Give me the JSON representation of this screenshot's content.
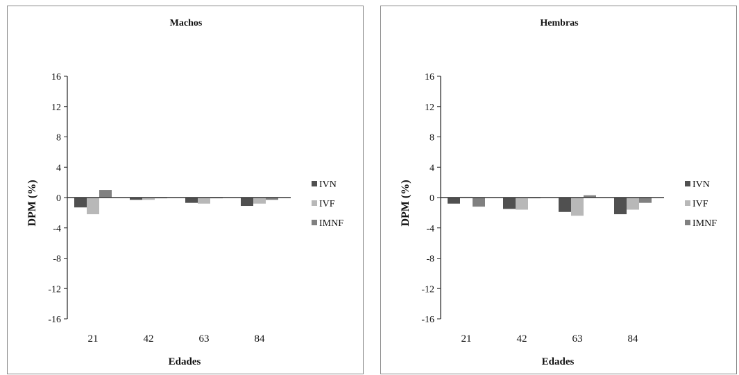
{
  "chart_data": [
    {
      "type": "bar",
      "title": "Machos",
      "xlabel": "Edades",
      "ylabel": "DPM  (%)",
      "categories": [
        "21",
        "42",
        "63",
        "84"
      ],
      "ylim": [
        -16,
        16
      ],
      "yticks": [
        16,
        12,
        8,
        4,
        0,
        -4,
        -8,
        -12,
        -16
      ],
      "legend_position": "right",
      "series": [
        {
          "name": "IVN",
          "color": "#505050",
          "values": [
            -1.3,
            -0.3,
            -0.7,
            -1.1
          ]
        },
        {
          "name": "IVF",
          "color": "#b8b8b8",
          "values": [
            -2.2,
            -0.3,
            -0.8,
            -0.8
          ]
        },
        {
          "name": "IMNF",
          "color": "#808080",
          "values": [
            1.0,
            -0.1,
            -0.1,
            -0.3
          ]
        }
      ]
    },
    {
      "type": "bar",
      "title": "Hembras",
      "xlabel": "Edades",
      "ylabel": "DPM  (%)",
      "categories": [
        "21",
        "42",
        "63",
        "84"
      ],
      "ylim": [
        -16,
        16
      ],
      "yticks": [
        16,
        12,
        8,
        4,
        0,
        -4,
        -8,
        -12,
        -16
      ],
      "legend_position": "right",
      "series": [
        {
          "name": "IVN",
          "color": "#505050",
          "values": [
            -0.8,
            -1.5,
            -1.9,
            -2.2
          ]
        },
        {
          "name": "IVF",
          "color": "#b8b8b8",
          "values": [
            0.1,
            -1.6,
            -2.4,
            -1.6
          ]
        },
        {
          "name": "IMNF",
          "color": "#808080",
          "values": [
            -1.2,
            -0.1,
            0.3,
            -0.7
          ]
        }
      ]
    }
  ]
}
